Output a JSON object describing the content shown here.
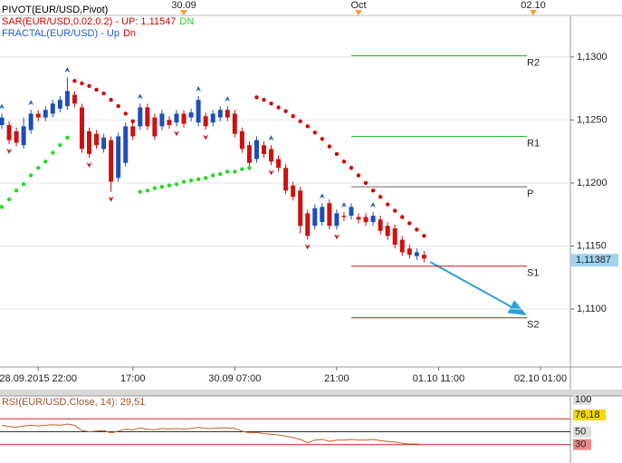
{
  "chart_data": {
    "type": "candlestick",
    "legend": [
      {
        "text": "PIVOT(EUR/USD,Pivot)",
        "color": "#000000"
      },
      {
        "text": "SAR(EUR/USD,0.02,0.2) -  UP: 1,11547",
        "color": "#d40000",
        "extra": "DN",
        "extra_color": "#22cc22"
      },
      {
        "text": "FRACTAL(EUR/USD) -  Up",
        "color": "#1f5fbf",
        "extra": "Dn",
        "extra_color": "#d40000"
      }
    ],
    "up_color": "#1c4fb5",
    "down_color": "#cc1111",
    "sar_up_color": "#22dd22",
    "sar_down_color": "#d40000",
    "fractal_up_color": "#1f5fbf",
    "fractal_down_color": "#cc1111",
    "xlim": [
      -25.25,
      53.1
    ],
    "ylim": [
      1.1054,
      1.1333
    ],
    "yticks": [
      {
        "value": 1.13,
        "label": "1,1300"
      },
      {
        "value": 1.125,
        "label": "1,1250"
      },
      {
        "value": 1.12,
        "label": "1,1200"
      },
      {
        "value": 1.115,
        "label": "1,1150"
      },
      {
        "value": 1.11,
        "label": "1,1100"
      }
    ],
    "xticks": [
      {
        "value": -20,
        "label": "28.09.2015 22:00"
      },
      {
        "value": -7,
        "label": "17:00"
      },
      {
        "value": 7,
        "label": "30.09 07:00"
      },
      {
        "value": 21,
        "label": "21:00"
      },
      {
        "value": 35,
        "label": "01.10 11:00"
      },
      {
        "value": 49,
        "label": "02.10 01:00"
      }
    ],
    "top_ticks": [
      {
        "value": 0,
        "label": "30.09"
      },
      {
        "value": 24,
        "label": "Oct"
      },
      {
        "value": 48,
        "label": "02.10"
      }
    ],
    "x": [
      -25,
      -24,
      -23,
      -22,
      -21,
      -20,
      -19,
      -18,
      -17,
      -16,
      -15,
      -14,
      -13,
      -12,
      -11,
      -10,
      -9,
      -8,
      -7,
      -6,
      -5,
      -4,
      -3,
      -2,
      -1,
      0,
      1,
      2,
      3,
      4,
      5,
      6,
      7,
      8,
      9,
      10,
      11,
      12,
      13,
      14,
      15,
      16,
      17,
      18,
      19,
      20,
      21,
      22,
      23,
      24,
      25,
      26,
      27,
      28,
      29,
      30,
      31,
      32,
      33
    ],
    "open": [
      1.1246,
      1.1246,
      1.1241,
      1.123,
      1.1242,
      1.1255,
      1.1252,
      1.1255,
      1.1259,
      1.1261,
      1.127,
      1.126,
      1.1241,
      1.1239,
      1.1227,
      1.1234,
      1.1204,
      1.1216,
      1.1245,
      1.1245,
      1.126,
      1.1252,
      1.1245,
      1.125,
      1.1248,
      1.1255,
      1.1252,
      1.1248,
      1.1253,
      1.1248,
      1.1252,
      1.1258,
      1.1255,
      1.1241,
      1.123,
      1.1219,
      1.123,
      1.1227,
      1.1219,
      1.1212,
      1.1198,
      1.1194,
      1.1176,
      1.1166,
      1.1169,
      1.1184,
      1.1166,
      1.1174,
      1.1174,
      1.1173,
      1.1173,
      1.1169,
      1.1171,
      1.1166,
      1.1164,
      1.1155,
      1.1148,
      1.1142,
      1.1143
    ],
    "high": [
      1.1255,
      1.1249,
      1.1244,
      1.1252,
      1.1258,
      1.1258,
      1.1261,
      1.1266,
      1.1269,
      1.1284,
      1.1273,
      1.1263,
      1.1244,
      1.1242,
      1.1239,
      1.1237,
      1.124,
      1.1248,
      1.1248,
      1.1263,
      1.1263,
      1.1255,
      1.1258,
      1.1253,
      1.1258,
      1.1258,
      1.1259,
      1.1269,
      1.1256,
      1.1258,
      1.1261,
      1.1261,
      1.1258,
      1.1244,
      1.1233,
      1.1237,
      1.1233,
      1.123,
      1.1222,
      1.1215,
      1.1201,
      1.1197,
      1.1179,
      1.1183,
      1.1184,
      1.1187,
      1.1179,
      1.1177,
      1.1184,
      1.1176,
      1.1176,
      1.1177,
      1.1174,
      1.1169,
      1.1167,
      1.1158,
      1.1151,
      1.1148,
      1.1146
    ],
    "low": [
      1.1243,
      1.1231,
      1.1229,
      1.1227,
      1.1239,
      1.1249,
      1.1249,
      1.1252,
      1.1256,
      1.1258,
      1.126,
      1.1224,
      1.122,
      1.1227,
      1.1224,
      1.1193,
      1.1201,
      1.1213,
      1.1234,
      1.1242,
      1.1242,
      1.1234,
      1.1242,
      1.1243,
      1.1245,
      1.1244,
      1.1249,
      1.1245,
      1.1242,
      1.1245,
      1.1249,
      1.1249,
      1.1236,
      1.1224,
      1.1213,
      1.1216,
      1.122,
      1.1214,
      1.1209,
      1.1191,
      1.1186,
      1.116,
      1.1155,
      1.1163,
      1.1166,
      1.1163,
      1.1163,
      1.117,
      1.1171,
      1.1168,
      1.1166,
      1.1166,
      1.1159,
      1.1155,
      1.1148,
      1.1142,
      1.114,
      1.1139,
      1.1137
    ],
    "close": [
      1.1252,
      1.1234,
      1.1232,
      1.1245,
      1.1255,
      1.1252,
      1.1258,
      1.1263,
      1.1266,
      1.1273,
      1.1263,
      1.1227,
      1.1223,
      1.123,
      1.1236,
      1.1201,
      1.1237,
      1.1245,
      1.1237,
      1.126,
      1.1245,
      1.1237,
      1.1255,
      1.1246,
      1.1255,
      1.1247,
      1.1256,
      1.1266,
      1.1245,
      1.1255,
      1.1258,
      1.1252,
      1.1239,
      1.1227,
      1.1216,
      1.1234,
      1.1223,
      1.1217,
      1.1212,
      1.1194,
      1.1189,
      1.1166,
      1.1158,
      1.118,
      1.1181,
      1.1166,
      1.1176,
      1.1173,
      1.1181,
      1.1171,
      1.1169,
      1.1174,
      1.1162,
      1.1158,
      1.1151,
      1.1145,
      1.1143,
      1.1145,
      1.114
    ],
    "sar": [
      1.1181,
      1.1187,
      1.1194,
      1.1199,
      1.1206,
      1.1212,
      1.1217,
      1.1224,
      1.123,
      1.1236,
      1.1281,
      1.1279,
      1.1277,
      1.1274,
      1.1271,
      1.1266,
      1.1261,
      1.1255,
      1.1249,
      1.1193,
      1.1194,
      1.1196,
      1.1197,
      1.1198,
      1.1199,
      1.1201,
      1.1202,
      1.1203,
      1.1204,
      1.1206,
      1.1207,
      1.1209,
      1.1209,
      1.1211,
      1.1212,
      1.1268,
      1.1266,
      1.1263,
      1.126,
      1.1257,
      1.1253,
      1.1249,
      1.1245,
      1.124,
      1.1235,
      1.1229,
      1.1223,
      1.1217,
      1.1212,
      1.1206,
      1.12,
      1.1194,
      1.1189,
      1.1183,
      1.1178,
      1.1173,
      1.1168,
      1.1163,
      1.1158
    ],
    "fractals_up": [
      -25,
      -21,
      -16,
      -6,
      2,
      6,
      12,
      19,
      22,
      26
    ],
    "fractals_down": [
      -24,
      -13,
      -10,
      -1,
      3,
      12,
      17,
      21
    ],
    "pivots": [
      {
        "name": "R2",
        "value": 1.1301,
        "color": "#22bb22"
      },
      {
        "name": "R1",
        "value": 1.1237,
        "color": "#22bb22"
      },
      {
        "name": "P",
        "value": 1.1197,
        "color": "#666666"
      },
      {
        "name": "S1",
        "value": 1.1134,
        "color": "#cc1111"
      },
      {
        "name": "S2",
        "value": 1.1093,
        "color": "#cc1111"
      }
    ],
    "last_price": {
      "value": 1.11387,
      "label": "1,11387"
    },
    "rsi": {
      "title": "RSI(EUR/USD,Close, 14): 29,51",
      "color": "#c0602a",
      "ylim": [
        0,
        105.6
      ],
      "yticks": [
        100,
        {
          "value": 76.18,
          "label": "76,18"
        },
        50,
        30
      ],
      "levels": [
        70,
        50,
        30
      ],
      "values": [
        60,
        58,
        57,
        59,
        60,
        59,
        60,
        61,
        60,
        62,
        60,
        52,
        50,
        51,
        52,
        48,
        51,
        54,
        53,
        56,
        54,
        53,
        55,
        54,
        55,
        54,
        55,
        57,
        55,
        55,
        56,
        56,
        55,
        51,
        48,
        49,
        47,
        46,
        45,
        43,
        41,
        38,
        33,
        37,
        38,
        35,
        37,
        37,
        38,
        37,
        37,
        38,
        36,
        35,
        34,
        32,
        31,
        31,
        29.51
      ]
    }
  }
}
